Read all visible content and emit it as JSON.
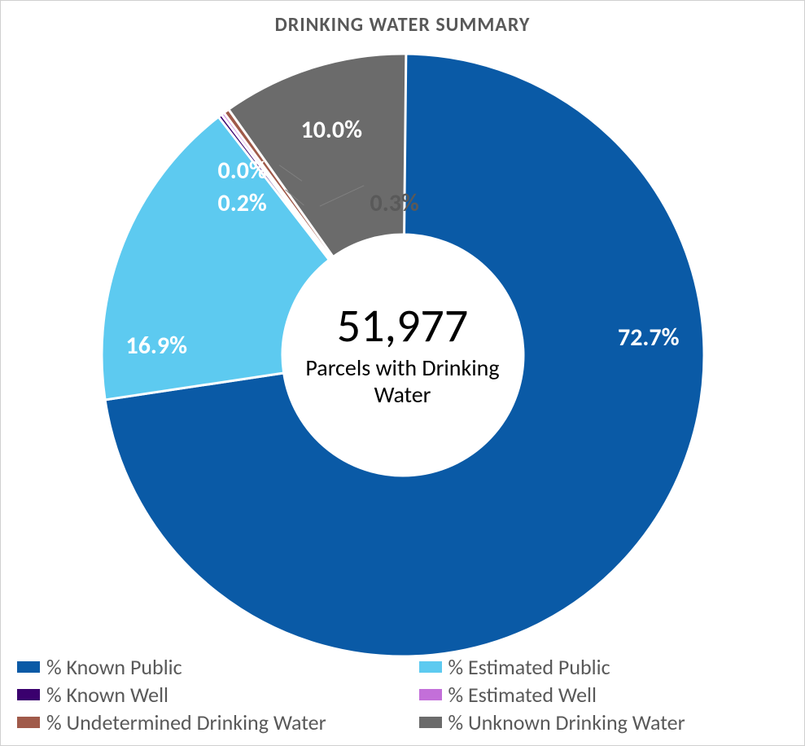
{
  "chart": {
    "type": "donut",
    "title": "DRINKING WATER SUMMARY",
    "title_color": "#595959",
    "title_fontsize": 24,
    "title_fontweight": "700",
    "background_color": "#ffffff",
    "center_number": "51,977",
    "center_number_fontsize": 58,
    "center_number_color": "#000000",
    "center_label": "Parcels with Drinking Water",
    "center_label_fontsize": 28,
    "center_label_color": "#000000",
    "inner_radius_pct": 40,
    "outer_radius_pct": 100,
    "slices": [
      {
        "name": "% Known Public",
        "value": 72.7,
        "label": "72.7%",
        "color": "#0a5aa6",
        "label_color": "#ffffff"
      },
      {
        "name": "% Estimated Public",
        "value": 16.9,
        "label": "16.9%",
        "color": "#5dcaf0",
        "label_color": "#ffffff"
      },
      {
        "name": "% Known Well",
        "value": 0.2,
        "label": "0.2%",
        "color": "#3a006e",
        "label_color": "#ffffff"
      },
      {
        "name": "% Estimated Well",
        "value": 0.0,
        "label": "0.0%",
        "color": "#c36fd9",
        "label_color": "#ffffff"
      },
      {
        "name": "% Undetermined Drinking Water",
        "value": 0.3,
        "label": "0.3%",
        "color": "#a05a4a",
        "label_color": "#595959"
      },
      {
        "name": "% Unknown Drinking Water",
        "value": 10.0,
        "label": "10.0%",
        "color": "#6b6b6b",
        "label_color": "#ffffff"
      }
    ],
    "slice_label_fontsize": 30,
    "legend_fontsize": 26,
    "legend_color": "#595959"
  }
}
